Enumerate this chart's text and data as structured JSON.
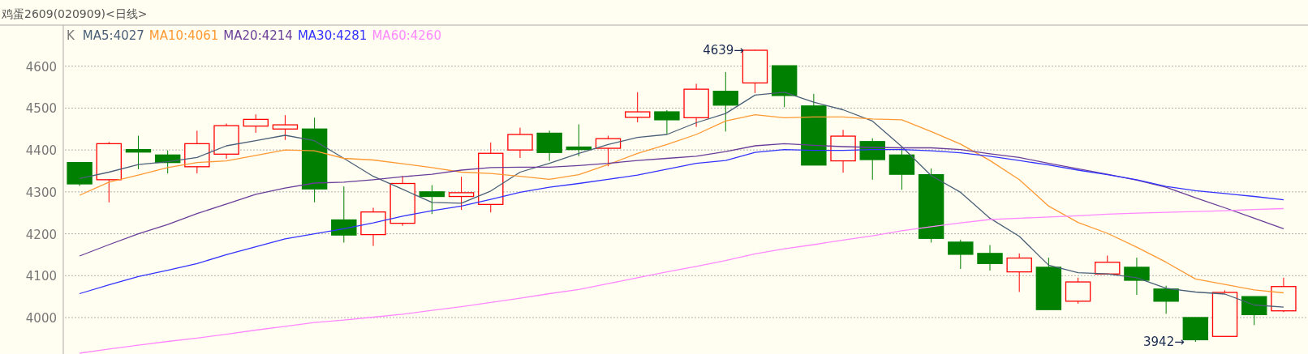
{
  "chart_data": {
    "type": "candlestick",
    "title": "鸡蛋2609(020909)<日线>",
    "categories": [
      null,
      null,
      null,
      null,
      null,
      null,
      null,
      null,
      null,
      null,
      null,
      null,
      null,
      null,
      null,
      null,
      null,
      null,
      null,
      null,
      null,
      null,
      null,
      null,
      null,
      null,
      null,
      null,
      null,
      null,
      null,
      null,
      null,
      null,
      null,
      null,
      null,
      null,
      null,
      null,
      null,
      null
    ],
    "ohlc": [
      [
        4370,
        4371,
        4314,
        4319
      ],
      [
        4329,
        4419,
        4275,
        4415
      ],
      [
        4401,
        4434,
        4354,
        4395
      ],
      [
        4388,
        4399,
        4344,
        4370
      ],
      [
        4360,
        4446,
        4344,
        4415
      ],
      [
        4390,
        4463,
        4379,
        4458
      ],
      [
        4457,
        4485,
        4441,
        4473
      ],
      [
        4450,
        4483,
        4424,
        4460
      ],
      [
        4450,
        4477,
        4275,
        4307
      ],
      [
        4233,
        4313,
        4179,
        4197
      ],
      [
        4198,
        4262,
        4171,
        4252
      ],
      [
        4225,
        4338,
        4219,
        4320
      ],
      [
        4300,
        4316,
        4247,
        4289
      ],
      [
        4289,
        4336,
        4257,
        4298
      ],
      [
        4270,
        4418,
        4251,
        4392
      ],
      [
        4400,
        4453,
        4381,
        4437
      ],
      [
        4440,
        4446,
        4374,
        4394
      ],
      [
        4407,
        4461,
        4385,
        4401
      ],
      [
        4404,
        4434,
        4361,
        4427
      ],
      [
        4478,
        4538,
        4466,
        4491
      ],
      [
        4491,
        4495,
        4438,
        4472
      ],
      [
        4477,
        4558,
        4455,
        4545
      ],
      [
        4540,
        4586,
        4444,
        4507
      ],
      [
        4560,
        4639,
        4536,
        4638
      ],
      [
        4601,
        4601,
        4502,
        4530
      ],
      [
        4505,
        4534,
        4364,
        4364
      ],
      [
        4374,
        4448,
        4346,
        4433
      ],
      [
        4420,
        4428,
        4329,
        4377
      ],
      [
        4388,
        4405,
        4305,
        4342
      ],
      [
        4341,
        4356,
        4179,
        4189
      ],
      [
        4180,
        4186,
        4116,
        4151
      ],
      [
        4153,
        4173,
        4112,
        4129
      ],
      [
        4109,
        4153,
        4061,
        4142
      ],
      [
        4120,
        4143,
        4019,
        4019
      ],
      [
        4039,
        4095,
        4033,
        4085
      ],
      [
        4104,
        4148,
        4104,
        4132
      ],
      [
        4120,
        4143,
        4054,
        4089
      ],
      [
        4068,
        4076,
        4009,
        4039
      ],
      [
        4000,
        4000,
        3942,
        3947
      ],
      [
        3955,
        4065,
        3955,
        4060
      ],
      [
        4050,
        4050,
        3982,
        4007
      ],
      [
        4016,
        4095,
        4013,
        4074
      ]
    ],
    "colors": [
      "#008000",
      "#ff0000",
      "#008000",
      "#008000",
      "#ff0000",
      "#ff0000",
      "#ff0000",
      "#ff0000",
      "#008000",
      "#008000",
      "#ff0000",
      "#ff0000",
      "#008000",
      "#ff0000",
      "#ff0000",
      "#ff0000",
      "#008000",
      "#008000",
      "#ff0000",
      "#ff0000",
      "#008000",
      "#ff0000",
      "#008000",
      "#ff0000",
      "#008000",
      "#008000",
      "#ff0000",
      "#008000",
      "#008000",
      "#008000",
      "#008000",
      "#008000",
      "#ff0000",
      "#008000",
      "#ff0000",
      "#ff0000",
      "#008000",
      "#008000",
      "#008000",
      "#ff0000",
      "#008000",
      "#ff0000"
    ],
    "series": [
      {
        "name": "MA5:4027",
        "type": "line",
        "color": "#4a6078",
        "values": [
          4332,
          4347,
          4365,
          4372,
          4382,
          4410,
          4422,
          4435,
          4422,
          4380,
          4337,
          4306,
          4275,
          4273,
          4302,
          4347,
          4368,
          4392,
          4413,
          4430,
          4437,
          4465,
          4487,
          4531,
          4538,
          4514,
          4496,
          4469,
          4408,
          4339,
          4299,
          4237,
          4194,
          4125,
          4107,
          4104,
          4095,
          4070,
          4061,
          4056,
          4030,
          4025
        ]
      },
      {
        "name": "MA10:4061",
        "type": "line",
        "color": "#ff9933",
        "values": [
          4292,
          4323,
          4340,
          4358,
          4370,
          4374,
          4387,
          4400,
          4398,
          4380,
          4376,
          4367,
          4358,
          4347,
          4344,
          4337,
          4330,
          4341,
          4365,
          4392,
          4413,
          4437,
          4469,
          4484,
          4477,
          4479,
          4479,
          4474,
          4472,
          4444,
          4414,
          4375,
          4329,
          4266,
          4227,
          4201,
          4168,
          4132,
          4092,
          4079,
          4066,
          4059
        ]
      },
      {
        "name": "MA20:4214",
        "type": "line",
        "color": "#6a3d9a",
        "values": [
          4147,
          4174,
          4200,
          4222,
          4248,
          4271,
          4294,
          4309,
          4321,
          4323,
          4329,
          4336,
          4342,
          4352,
          4358,
          4359,
          4359,
          4363,
          4368,
          4375,
          4380,
          4385,
          4396,
          4410,
          4415,
          4411,
          4408,
          4406,
          4405,
          4405,
          4401,
          4391,
          4382,
          4368,
          4355,
          4342,
          4328,
          4311,
          4286,
          4262,
          4237,
          4212
        ]
      },
      {
        "name": "MA30:4281",
        "type": "line",
        "color": "#3333ff",
        "values": [
          4057,
          4078,
          4098,
          4113,
          4129,
          4150,
          4169,
          4188,
          4200,
          4212,
          4226,
          4242,
          4255,
          4266,
          4282,
          4299,
          4311,
          4320,
          4330,
          4340,
          4354,
          4368,
          4375,
          4394,
          4401,
          4399,
          4399,
          4401,
          4401,
          4398,
          4393,
          4385,
          4375,
          4364,
          4352,
          4341,
          4329,
          4313,
          4303,
          4296,
          4289,
          4281
        ]
      },
      {
        "name": "MA60:4260",
        "type": "line",
        "color": "#ff88ff",
        "values": [
          3915,
          3925,
          3934,
          3943,
          3951,
          3960,
          3970,
          3979,
          3988,
          3994,
          4001,
          4008,
          4017,
          4026,
          4036,
          4046,
          4057,
          4067,
          4081,
          4095,
          4109,
          4122,
          4136,
          4152,
          4164,
          4174,
          4185,
          4195,
          4207,
          4217,
          4226,
          4234,
          4237,
          4240,
          4243,
          4247,
          4249,
          4251,
          4253,
          4255,
          4258,
          4260
        ]
      }
    ],
    "annotations": [
      "K",
      "4639→",
      "3942→"
    ],
    "ylim": [
      3913,
      4698
    ],
    "yticks": [
      4000,
      4100,
      4200,
      4300,
      4400,
      4500,
      4600
    ],
    "grid": "y",
    "legend": "top left",
    "tick_labels": "y"
  }
}
